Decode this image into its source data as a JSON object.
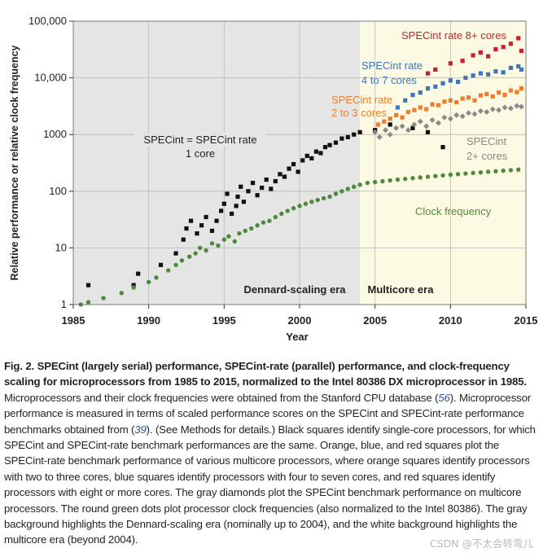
{
  "chart_data": {
    "type": "scatter",
    "y_scale": "log",
    "xlim": [
      1985,
      2015
    ],
    "ylim": [
      1,
      100000
    ],
    "xlabel": "Year",
    "ylabel": "Relative performance or relative clock frequency",
    "x_ticks": [
      "1985",
      "1990",
      "1995",
      "2000",
      "2005",
      "2010",
      "2015"
    ],
    "y_ticks": [
      "1",
      "10",
      "100",
      "1000",
      "10,000",
      "100,000"
    ],
    "grid": true,
    "eras": [
      {
        "name": "Dennard-scaling era",
        "from": 1985,
        "to": 2004,
        "color": "#e5e5e5"
      },
      {
        "name": "Multicore era",
        "from": 2004,
        "to": 2015,
        "color": "#fdfae3"
      }
    ],
    "annotations": [
      {
        "text": "SPECint rate 8+ cores",
        "color": "#c8202f"
      },
      {
        "text": "SPECint rate",
        "color": "#3f76b9"
      },
      {
        "text": "4 to 7 cores",
        "color": "#3f76b9"
      },
      {
        "text": "SPECint rate",
        "color": "#ef7d2d"
      },
      {
        "text": "2 to 3 cores",
        "color": "#ef7d2d"
      },
      {
        "text": "SPECint = SPECint rate",
        "color": "#231f20"
      },
      {
        "text": "1 core",
        "color": "#231f20"
      },
      {
        "text": "SPECint",
        "color": "#888888"
      },
      {
        "text": "2+ cores",
        "color": "#888888"
      },
      {
        "text": "Clock frequency",
        "color": "#4e8a3c"
      }
    ],
    "series": [
      {
        "name": "SPECint single core",
        "marker": "square",
        "color": "#111111",
        "points": [
          [
            1986,
            2.2
          ],
          [
            1989,
            2.2
          ],
          [
            1989.3,
            3.5
          ],
          [
            1990.8,
            5
          ],
          [
            1991.8,
            8
          ],
          [
            1992.3,
            14
          ],
          [
            1992.5,
            22
          ],
          [
            1992.8,
            30
          ],
          [
            1993.2,
            18
          ],
          [
            1993.5,
            25
          ],
          [
            1993.8,
            35
          ],
          [
            1994.2,
            20
          ],
          [
            1994.5,
            30
          ],
          [
            1994.8,
            45
          ],
          [
            1995,
            60
          ],
          [
            1995.2,
            90
          ],
          [
            1995.5,
            40
          ],
          [
            1995.8,
            55
          ],
          [
            1995.9,
            80
          ],
          [
            1996.1,
            120
          ],
          [
            1996.3,
            65
          ],
          [
            1996.6,
            100
          ],
          [
            1996.9,
            140
          ],
          [
            1997.2,
            85
          ],
          [
            1997.5,
            115
          ],
          [
            1997.8,
            160
          ],
          [
            1998.1,
            110
          ],
          [
            1998.4,
            150
          ],
          [
            1998.7,
            200
          ],
          [
            1999,
            180
          ],
          [
            1999.3,
            250
          ],
          [
            1999.6,
            300
          ],
          [
            1999.9,
            220
          ],
          [
            2000.2,
            350
          ],
          [
            2000.5,
            420
          ],
          [
            2000.8,
            380
          ],
          [
            2001.1,
            500
          ],
          [
            2001.4,
            470
          ],
          [
            2001.7,
            600
          ],
          [
            2002,
            650
          ],
          [
            2002.4,
            720
          ],
          [
            2002.8,
            850
          ],
          [
            2003.2,
            900
          ],
          [
            2003.6,
            1000
          ],
          [
            2004,
            1100
          ],
          [
            2005,
            1200
          ],
          [
            2006,
            1500
          ],
          [
            2007.5,
            1300
          ],
          [
            2008.5,
            1100
          ],
          [
            2009.5,
            600
          ]
        ]
      },
      {
        "name": "SPECint rate 2 to 3 cores",
        "marker": "square",
        "color": "#ef7d2d",
        "points": [
          [
            2005.2,
            1500
          ],
          [
            2005.6,
            1700
          ],
          [
            2006,
            1900
          ],
          [
            2006.4,
            2200
          ],
          [
            2006.8,
            2000
          ],
          [
            2007.2,
            2500
          ],
          [
            2007.6,
            2700
          ],
          [
            2008,
            3000
          ],
          [
            2008.4,
            2800
          ],
          [
            2008.8,
            3400
          ],
          [
            2009.2,
            3300
          ],
          [
            2009.6,
            3800
          ],
          [
            2010,
            4000
          ],
          [
            2010.4,
            3700
          ],
          [
            2010.8,
            4300
          ],
          [
            2011.2,
            4500
          ],
          [
            2011.6,
            4000
          ],
          [
            2012,
            4900
          ],
          [
            2012.4,
            5200
          ],
          [
            2012.8,
            4700
          ],
          [
            2013.2,
            5500
          ],
          [
            2013.6,
            5000
          ],
          [
            2014,
            6000
          ],
          [
            2014.4,
            5600
          ],
          [
            2014.7,
            6500
          ]
        ]
      },
      {
        "name": "SPECint rate 4 to 7 cores",
        "marker": "square",
        "color": "#3f76b9",
        "points": [
          [
            2006.5,
            3000
          ],
          [
            2007,
            4000
          ],
          [
            2007.5,
            5000
          ],
          [
            2008,
            5500
          ],
          [
            2008.5,
            6500
          ],
          [
            2009,
            7000
          ],
          [
            2009.5,
            8000
          ],
          [
            2010,
            9000
          ],
          [
            2010.5,
            8500
          ],
          [
            2011,
            10000
          ],
          [
            2011.5,
            11000
          ],
          [
            2012,
            12000
          ],
          [
            2012.5,
            11500
          ],
          [
            2013,
            13000
          ],
          [
            2013.5,
            12500
          ],
          [
            2014,
            15000
          ],
          [
            2014.5,
            16000
          ],
          [
            2014.7,
            14000
          ]
        ]
      },
      {
        "name": "SPECint rate 8+ cores",
        "marker": "square",
        "color": "#c8202f",
        "points": [
          [
            2008.5,
            12000
          ],
          [
            2009,
            14000
          ],
          [
            2010,
            18000
          ],
          [
            2010.8,
            20000
          ],
          [
            2011.5,
            25000
          ],
          [
            2012,
            28000
          ],
          [
            2012.5,
            24000
          ],
          [
            2013,
            32000
          ],
          [
            2013.5,
            35000
          ],
          [
            2014,
            40000
          ],
          [
            2014.5,
            50000
          ],
          [
            2014.7,
            30000
          ]
        ]
      },
      {
        "name": "SPECint 2+ cores",
        "marker": "diamond",
        "color": "#8a8a8a",
        "points": [
          [
            2005,
            1100
          ],
          [
            2005.3,
            900
          ],
          [
            2005.7,
            1200
          ],
          [
            2006,
            1000
          ],
          [
            2006.4,
            1300
          ],
          [
            2006.8,
            1400
          ],
          [
            2007.2,
            1200
          ],
          [
            2007.6,
            1500
          ],
          [
            2008,
            1700
          ],
          [
            2008.4,
            1400
          ],
          [
            2008.8,
            1800
          ],
          [
            2009.2,
            1600
          ],
          [
            2009.6,
            2000
          ],
          [
            2010,
            1900
          ],
          [
            2010.4,
            2200
          ],
          [
            2010.8,
            2100
          ],
          [
            2011.2,
            2400
          ],
          [
            2011.6,
            2300
          ],
          [
            2012,
            2600
          ],
          [
            2012.4,
            2500
          ],
          [
            2012.8,
            2800
          ],
          [
            2013.2,
            2700
          ],
          [
            2013.6,
            3000
          ],
          [
            2014,
            2900
          ],
          [
            2014.4,
            3200
          ],
          [
            2014.7,
            3100
          ]
        ]
      },
      {
        "name": "Clock frequency",
        "marker": "circle",
        "color": "#4e8a3c",
        "points": [
          [
            1985.5,
            1
          ],
          [
            1986,
            1.1
          ],
          [
            1987,
            1.3
          ],
          [
            1988.2,
            1.6
          ],
          [
            1989,
            2
          ],
          [
            1990,
            2.5
          ],
          [
            1990.5,
            3
          ],
          [
            1991.3,
            4
          ],
          [
            1991.8,
            5
          ],
          [
            1992.2,
            6
          ],
          [
            1992.7,
            7
          ],
          [
            1993.1,
            8
          ],
          [
            1993.4,
            10
          ],
          [
            1993.8,
            9
          ],
          [
            1994.2,
            12
          ],
          [
            1994.6,
            11
          ],
          [
            1995,
            14
          ],
          [
            1995.3,
            16
          ],
          [
            1995.7,
            13
          ],
          [
            1996,
            18
          ],
          [
            1996.4,
            20
          ],
          [
            1996.8,
            22
          ],
          [
            1997.2,
            25
          ],
          [
            1997.6,
            28
          ],
          [
            1998,
            30
          ],
          [
            1998.4,
            35
          ],
          [
            1998.8,
            40
          ],
          [
            1999.2,
            45
          ],
          [
            1999.6,
            50
          ],
          [
            2000,
            55
          ],
          [
            2000.4,
            60
          ],
          [
            2000.8,
            65
          ],
          [
            2001.2,
            70
          ],
          [
            2001.6,
            75
          ],
          [
            2002,
            80
          ],
          [
            2002.4,
            90
          ],
          [
            2002.8,
            100
          ],
          [
            2003.2,
            110
          ],
          [
            2003.6,
            120
          ],
          [
            2004,
            130
          ],
          [
            2004.5,
            140
          ],
          [
            2005,
            145
          ],
          [
            2005.5,
            150
          ],
          [
            2006,
            155
          ],
          [
            2006.5,
            160
          ],
          [
            2007,
            165
          ],
          [
            2007.5,
            170
          ],
          [
            2008,
            175
          ],
          [
            2008.5,
            180
          ],
          [
            2009,
            185
          ],
          [
            2009.5,
            190
          ],
          [
            2010,
            195
          ],
          [
            2010.5,
            200
          ],
          [
            2011,
            205
          ],
          [
            2011.5,
            210
          ],
          [
            2012,
            215
          ],
          [
            2012.5,
            220
          ],
          [
            2013,
            225
          ],
          [
            2013.5,
            230
          ],
          [
            2014,
            235
          ],
          [
            2014.5,
            240
          ]
        ]
      }
    ]
  },
  "caption": {
    "lead": "Fig. 2. SPECint (largely serial) performance, SPECint-rate (parallel) performance, and clock-frequency scaling for microprocessors from 1985 to 2015, normalized to the Intel 80386 DX microprocessor in 1985.",
    "text_1": " Microprocessors and their clock frequencies were obtained from the Stanford CPU database (",
    "ref_1": "56",
    "text_2": "). Microprocessor performance is measured in terms of scaled performance scores on the SPECint and SPECint-rate performance benchmarks obtained from (",
    "ref_2": "39",
    "text_3": "). (See Methods for details.) Black squares identify single-core processors, for which SPECint and SPECint-rate benchmark performances are the same. Orange, blue, and red squares plot the SPECint-rate benchmark performance of various multicore processors, where orange squares identify processors with two to three cores, blue squares identify processors with four to seven cores, and red squares identify processors with eight or more cores. The gray diamonds plot the SPECint benchmark performance on multicore processors. The round green dots plot processor clock frequencies (also normalized to the Intel 80386). The gray background highlights the Dennard-scaling era (nominally up to 2004), and the white background highlights the multicore era (beyond 2004)."
  },
  "watermark": "CSDN @不太会转弯儿"
}
